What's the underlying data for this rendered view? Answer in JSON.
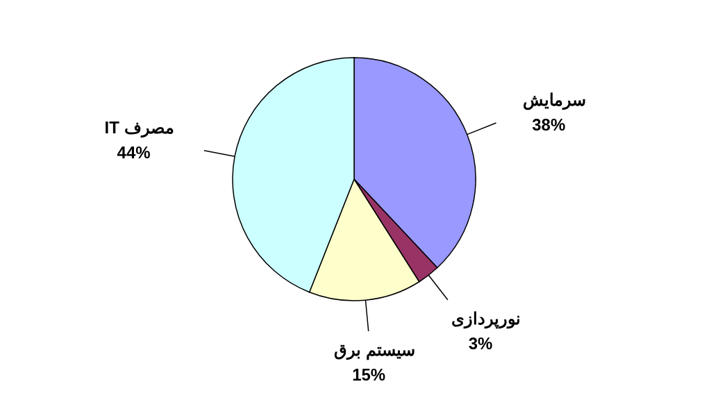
{
  "chart_data": {
    "type": "pie",
    "categories": [
      "سرمایش",
      "نورپردازی",
      "سیستم برق",
      "مصرف IT"
    ],
    "values": [
      38,
      3,
      15,
      44
    ],
    "value_labels": [
      "38%",
      "3%",
      "15%",
      "44%"
    ],
    "colors": [
      "#9999ff",
      "#993366",
      "#ffffcc",
      "#ccffff"
    ]
  }
}
